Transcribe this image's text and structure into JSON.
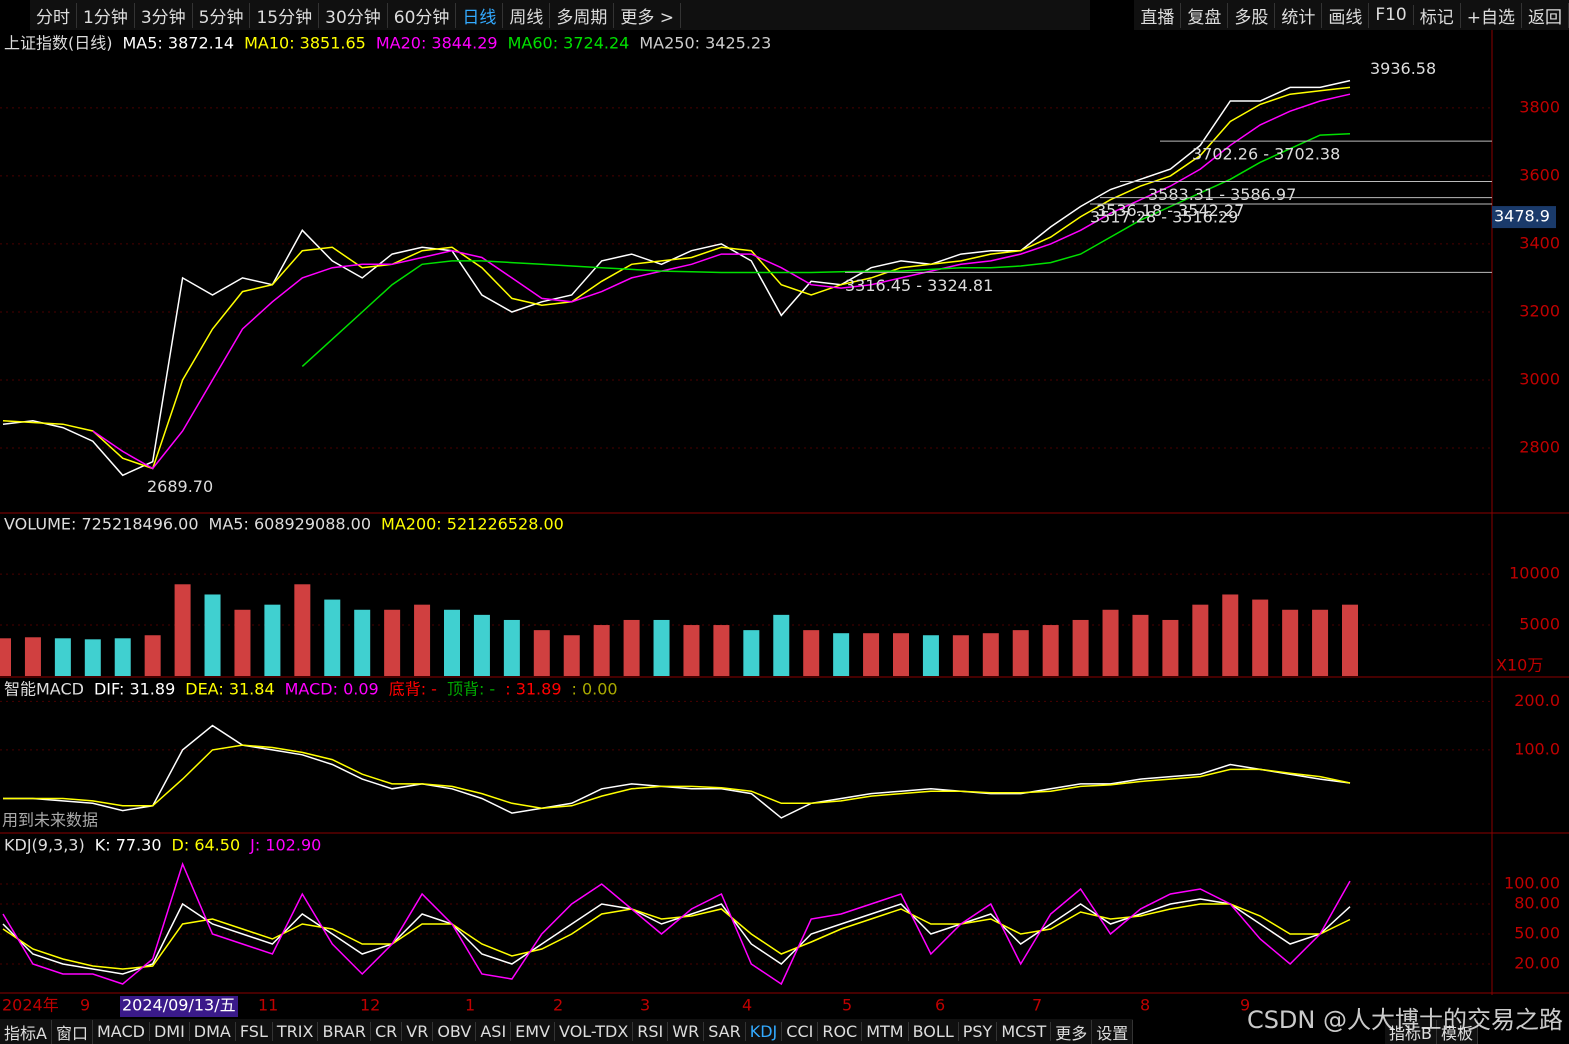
{
  "toolbar": {
    "left": [
      "分时",
      "1分钟",
      "3分钟",
      "5分钟",
      "15分钟",
      "30分钟",
      "60分钟",
      "日线",
      "周线",
      "多周期",
      "更多 >"
    ],
    "right": [
      "直播",
      "复盘",
      "多股",
      "统计",
      "画线",
      "F10",
      "标记",
      "+自选",
      "返回"
    ]
  },
  "main": {
    "title": "上证指数(日线)",
    "ylim": [
      2612,
      4020
    ],
    "yticks": [
      2800,
      3000,
      3200,
      3400,
      3600,
      3800
    ],
    "series": [
      {
        "legend": "MA5: 3872.14",
        "color": "#ffffff",
        "values": [
          2870,
          2880,
          2860,
          2820,
          2720,
          2760,
          3300,
          3250,
          3300,
          3280,
          3440,
          3350,
          3300,
          3370,
          3390,
          3380,
          3250,
          3200,
          3230,
          3250,
          3350,
          3370,
          3340,
          3380,
          3400,
          3350,
          3190,
          3290,
          3280,
          3330,
          3350,
          3340,
          3370,
          3380,
          3380,
          3450,
          3510,
          3560,
          3590,
          3620,
          3690,
          3820,
          3820,
          3860,
          3860,
          3880
        ]
      },
      {
        "legend": "MA10: 3851.65",
        "color": "#ffff00",
        "values": [
          2880,
          2875,
          2870,
          2850,
          2770,
          2740,
          3000,
          3150,
          3260,
          3280,
          3380,
          3390,
          3330,
          3340,
          3380,
          3390,
          3330,
          3240,
          3220,
          3230,
          3290,
          3340,
          3350,
          3360,
          3390,
          3380,
          3280,
          3250,
          3280,
          3300,
          3330,
          3340,
          3350,
          3370,
          3380,
          3420,
          3480,
          3530,
          3570,
          3600,
          3660,
          3760,
          3810,
          3840,
          3850,
          3860
        ]
      },
      {
        "legend": "MA20: 3844.29",
        "color": "#ff00ff",
        "values": [
          null,
          null,
          null,
          2850,
          2790,
          2740,
          2850,
          3000,
          3150,
          3230,
          3300,
          3330,
          3340,
          3340,
          3360,
          3380,
          3360,
          3300,
          3240,
          3230,
          3260,
          3300,
          3320,
          3340,
          3370,
          3370,
          3330,
          3280,
          3270,
          3280,
          3300,
          3320,
          3340,
          3350,
          3370,
          3400,
          3440,
          3490,
          3530,
          3570,
          3620,
          3690,
          3750,
          3790,
          3820,
          3840
        ]
      },
      {
        "legend": "MA60: 3724.24",
        "color": "#00e000",
        "values": [
          null,
          null,
          null,
          null,
          null,
          null,
          null,
          null,
          null,
          null,
          3040,
          3120,
          3200,
          3280,
          3340,
          3350,
          3350,
          3345,
          3340,
          3335,
          3330,
          3325,
          3320,
          3318,
          3316,
          3316,
          3316,
          3316,
          3318,
          3320,
          3320,
          3325,
          3330,
          3330,
          3335,
          3345,
          3370,
          3420,
          3470,
          3510,
          3550,
          3590,
          3640,
          3680,
          3720,
          3724
        ]
      },
      {
        "legend": "MA250: 3425.23",
        "color": "#cccccc",
        "values": []
      }
    ],
    "levels": [
      {
        "label": "3702.26 - 3702.38",
        "value": 3702.26
      },
      {
        "label": "3583.31 - 3586.97",
        "value": 3583.31
      },
      {
        "label": "3536.18 - 3542.27",
        "value": 3536.18
      },
      {
        "label": "3517.28 - 3516.29",
        "value": 3517.28
      },
      {
        "label": "3316.45 - 3324.81",
        "value": 3316.45
      }
    ],
    "high": {
      "label": "3936.58",
      "value": 3936.58
    },
    "low": {
      "label": "2689.70",
      "value": 2689.7
    },
    "current": {
      "label": "3478.9",
      "value": 3478.9
    }
  },
  "volume": {
    "title": "VOLUME: 725218496.00",
    "legend": [
      "MA5: 608929088.00",
      "MA200: 521226528.00"
    ],
    "unit": "X10万",
    "ylim": [
      0,
      15800
    ],
    "yticks": [
      5000,
      10000
    ],
    "values": [
      3700,
      3800,
      3700,
      3600,
      3700,
      4000,
      9000,
      8000,
      6500,
      7000,
      9000,
      7500,
      6500,
      6500,
      7000,
      6500,
      6000,
      5500,
      4500,
      4000,
      5000,
      5500,
      5500,
      5000,
      5000,
      4500,
      6000,
      4500,
      4200,
      4200,
      4200,
      4000,
      4000,
      4200,
      4500,
      5000,
      5500,
      6500,
      6000,
      5500,
      7000,
      8000,
      7500,
      6500,
      6500,
      7000
    ]
  },
  "macd": {
    "title": "智能MACD",
    "ylim": [
      -69,
      244
    ],
    "yticks": [
      {
        "value": 100,
        "label": "100.0"
      },
      {
        "value": 200,
        "label": "200.0"
      }
    ],
    "note": "用到未来数据",
    "extra": [
      "底背: -",
      "顶背: -",
      ": 31.89",
      ": 0.00"
    ],
    "series": [
      {
        "legend": "DIF: 31.89",
        "color": "#ffffff",
        "values": [
          0,
          0,
          -5,
          -10,
          -25,
          -15,
          100,
          150,
          110,
          100,
          90,
          70,
          40,
          20,
          30,
          20,
          0,
          -30,
          -20,
          -10,
          20,
          30,
          25,
          20,
          20,
          10,
          -40,
          -10,
          0,
          10,
          15,
          20,
          15,
          10,
          10,
          20,
          30,
          30,
          40,
          45,
          50,
          70,
          60,
          50,
          40,
          32
        ]
      },
      {
        "legend": "DEA: 31.84",
        "color": "#ffff00",
        "values": [
          0,
          0,
          0,
          -5,
          -15,
          -15,
          40,
          100,
          110,
          105,
          95,
          80,
          50,
          30,
          30,
          25,
          10,
          -10,
          -20,
          -15,
          5,
          20,
          25,
          25,
          22,
          15,
          -10,
          -10,
          -5,
          5,
          10,
          15,
          15,
          12,
          12,
          15,
          25,
          28,
          35,
          40,
          45,
          60,
          60,
          52,
          45,
          32
        ]
      },
      {
        "legend": "MACD: 0.09",
        "color": "#ff00ff",
        "values": []
      }
    ]
  },
  "kdj": {
    "title": "KDJ(9,3,3)",
    "ylim": [
      -8,
      148
    ],
    "yticks": [
      {
        "value": 20,
        "label": "20.00"
      },
      {
        "value": 50,
        "label": "50.00"
      },
      {
        "value": 80,
        "label": "80.00"
      },
      {
        "value": 100,
        "label": "100.00"
      }
    ],
    "series": [
      {
        "legend": "K: 77.30",
        "color": "#ffffff",
        "values": [
          60,
          30,
          20,
          15,
          10,
          20,
          80,
          60,
          50,
          40,
          70,
          50,
          30,
          40,
          70,
          60,
          30,
          20,
          40,
          60,
          80,
          75,
          60,
          70,
          80,
          40,
          20,
          50,
          60,
          70,
          80,
          50,
          60,
          70,
          40,
          60,
          80,
          60,
          70,
          80,
          85,
          80,
          60,
          40,
          50,
          77.3
        ]
      },
      {
        "legend": "D: 64.50",
        "color": "#ffff00",
        "values": [
          55,
          35,
          25,
          18,
          15,
          18,
          60,
          65,
          55,
          45,
          60,
          55,
          40,
          40,
          60,
          60,
          40,
          28,
          35,
          50,
          70,
          75,
          65,
          68,
          75,
          50,
          30,
          42,
          55,
          65,
          75,
          60,
          60,
          65,
          50,
          55,
          72,
          65,
          68,
          75,
          80,
          80,
          68,
          50,
          50,
          64.5
        ]
      },
      {
        "legend": "J: 102.90",
        "color": "#ff00ff",
        "values": [
          70,
          20,
          10,
          10,
          0,
          25,
          120,
          50,
          40,
          30,
          90,
          40,
          10,
          40,
          90,
          60,
          10,
          5,
          50,
          80,
          100,
          75,
          50,
          75,
          90,
          20,
          0,
          65,
          70,
          80,
          90,
          30,
          60,
          80,
          20,
          70,
          95,
          50,
          75,
          90,
          95,
          80,
          45,
          20,
          50,
          102.9
        ]
      }
    ]
  },
  "dates": [
    "2024年",
    "9",
    "2024/09/13/五",
    "11",
    "12",
    "1",
    "2",
    "3",
    "4",
    "5",
    "6",
    "7",
    "8",
    "9"
  ],
  "tabs": [
    "指标A",
    "窗口",
    "MACD",
    "DMI",
    "DMA",
    "FSL",
    "TRIX",
    "BRAR",
    "CR",
    "VR",
    "OBV",
    "ASI",
    "EMV",
    "VOL-TDX",
    "RSI",
    "WR",
    "SAR",
    "KDJ",
    "CCI",
    "ROC",
    "MTM",
    "BOLL",
    "PSY",
    "MCST",
    "更多",
    "设置"
  ],
  "tabs_right": [
    "指标B",
    "模板"
  ],
  "watermark": "CSDN @人大博士的交易之路"
}
